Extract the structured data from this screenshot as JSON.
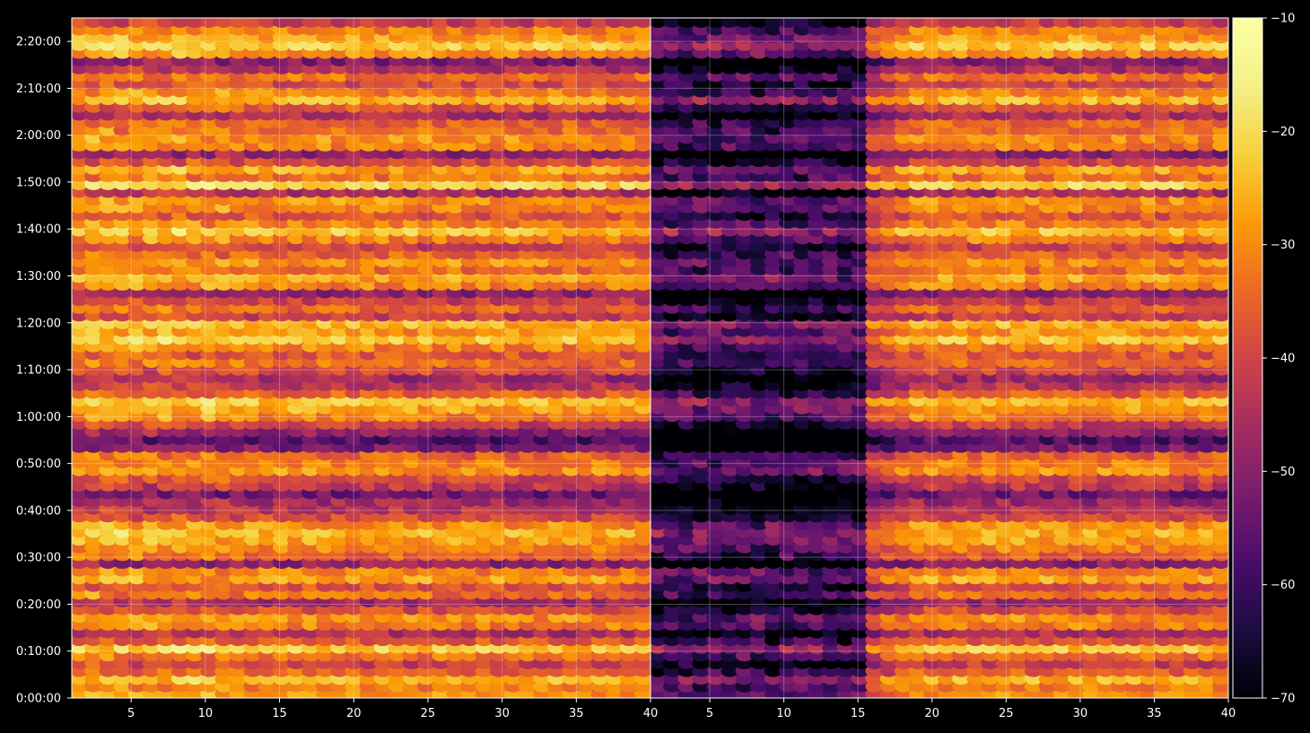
{
  "chart_data": {
    "type": "heatmap",
    "title": "",
    "xlabel": "",
    "ylabel": "",
    "panels": [
      {
        "name": "",
        "xlim": [
          1,
          40
        ],
        "xticks": [
          "5",
          "10",
          "15",
          "20",
          "25",
          "30",
          "35",
          "40"
        ],
        "dim_region": null
      },
      {
        "name": "",
        "xlim": [
          1,
          40
        ],
        "xticks": [
          "5",
          "10",
          "15",
          "20",
          "25",
          "30",
          "35",
          "40"
        ],
        "dim_region": [
          1,
          15
        ]
      }
    ],
    "y_range_seconds": [
      0,
      8700
    ],
    "yticks": [
      "0:00:00",
      "0:10:00",
      "0:20:00",
      "0:30:00",
      "0:40:00",
      "0:50:00",
      "1:00:00",
      "1:10:00",
      "1:20:00",
      "1:30:00",
      "1:40:00",
      "1:50:00",
      "2:00:00",
      "2:10:00",
      "2:20:00"
    ],
    "grid": true,
    "colorbar": {
      "ticks": [
        "−10",
        "−20",
        "−30",
        "−40",
        "−50",
        "−60",
        "−70"
      ],
      "range": [
        -70,
        -10
      ],
      "colormap": "inferno"
    },
    "row_levels_dB": [
      -28,
      -30,
      -24,
      -34,
      -40,
      -32,
      -22,
      -35,
      -44,
      -30,
      -28,
      -38,
      -46,
      -32,
      -36,
      -26,
      -30,
      -48,
      -34,
      -30,
      -26,
      -24,
      -28,
      -38,
      -42,
      -46,
      -52,
      -42,
      -38,
      -28,
      -30,
      -34,
      -50,
      -56,
      -48,
      -40,
      -30,
      -26,
      -22,
      -34,
      -42,
      -46,
      -38,
      -32,
      -36,
      -30,
      -22,
      -28,
      -24,
      -40,
      -34,
      -40,
      -48,
      -30,
      -26,
      -32,
      -28,
      -34,
      -40,
      -30,
      -22,
      -30,
      -36,
      -30,
      -28,
      -44,
      -20,
      -32,
      -26,
      -38,
      -48,
      -30,
      -28,
      -32,
      -34,
      -44,
      -36,
      -24,
      -30,
      -38,
      -32,
      -44,
      -50,
      -28,
      -20,
      -26,
      -30,
      -40
    ]
  },
  "colors": {
    "background": "#000000",
    "grid": "#ffffff",
    "axis": "#ffffff"
  }
}
